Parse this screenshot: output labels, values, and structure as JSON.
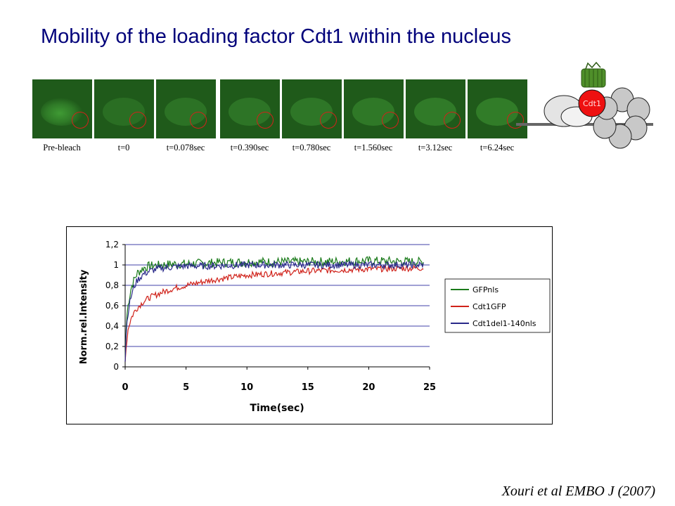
{
  "slide": {
    "title": "Mobility of the loading factor Cdt1 within the nucleus",
    "citation": "Xouri et al EMBO J (2007)"
  },
  "frames": [
    {
      "label": "Pre-bleach"
    },
    {
      "label": "t=0"
    },
    {
      "label": "t=0.078sec"
    },
    {
      "label": "t=0.390sec"
    },
    {
      "label": "t=0.780sec"
    },
    {
      "label": "t=1.560sec"
    },
    {
      "label": "t=3.12sec"
    },
    {
      "label": "t=6.24sec"
    }
  ],
  "schematic": {
    "protein_label": "Cdt1"
  },
  "colors": {
    "title": "#00007a",
    "GFPnls": "#1a7a1a",
    "Cdt1GFP": "#d0221a",
    "Cdt1del1-140nls": "#2a2a8a",
    "grid": "#00008b",
    "bleach_circle": "#d0221a",
    "micrograph_bg": "#1f5a1a"
  },
  "chart_data": {
    "type": "line",
    "xlabel": "Time(sec)",
    "ylabel": "Norm.rel.Intensity",
    "xlim": [
      0,
      25
    ],
    "ylim": [
      0,
      1.2
    ],
    "xticks": [
      "0",
      "5",
      "10",
      "15",
      "20",
      "25"
    ],
    "yticks": [
      "0",
      "0,2",
      "0,4",
      "0,6",
      "0,8",
      "1",
      "1,2"
    ],
    "grid": "horizontal",
    "legend_position": "right",
    "series": [
      {
        "name": "GFPnls",
        "color": "#1a7a1a",
        "x": [
          0,
          0.1,
          0.25,
          0.5,
          0.75,
          1,
          1.5,
          2,
          3,
          4,
          5,
          7,
          10,
          15,
          20,
          24.5
        ],
        "y": [
          0.05,
          0.45,
          0.62,
          0.78,
          0.86,
          0.92,
          0.97,
          0.99,
          1.0,
          1.01,
          1.01,
          1.02,
          1.03,
          1.03,
          1.04,
          1.03
        ]
      },
      {
        "name": "Cdt1GFP",
        "color": "#d0221a",
        "x": [
          0,
          0.1,
          0.25,
          0.5,
          0.75,
          1,
          1.5,
          2,
          3,
          4,
          5,
          7,
          10,
          15,
          20,
          24.5
        ],
        "y": [
          0.05,
          0.22,
          0.38,
          0.48,
          0.54,
          0.58,
          0.64,
          0.68,
          0.73,
          0.77,
          0.8,
          0.85,
          0.9,
          0.94,
          0.96,
          0.97
        ]
      },
      {
        "name": "Cdt1del1-140nls",
        "color": "#2a2a8a",
        "x": [
          0,
          0.1,
          0.25,
          0.5,
          0.75,
          1,
          1.5,
          2,
          3,
          4,
          5,
          7,
          10,
          15,
          20,
          24.5
        ],
        "y": [
          0.05,
          0.38,
          0.55,
          0.7,
          0.79,
          0.85,
          0.91,
          0.94,
          0.97,
          0.98,
          0.99,
          0.99,
          1.0,
          1.0,
          1.0,
          1.0
        ]
      }
    ]
  }
}
